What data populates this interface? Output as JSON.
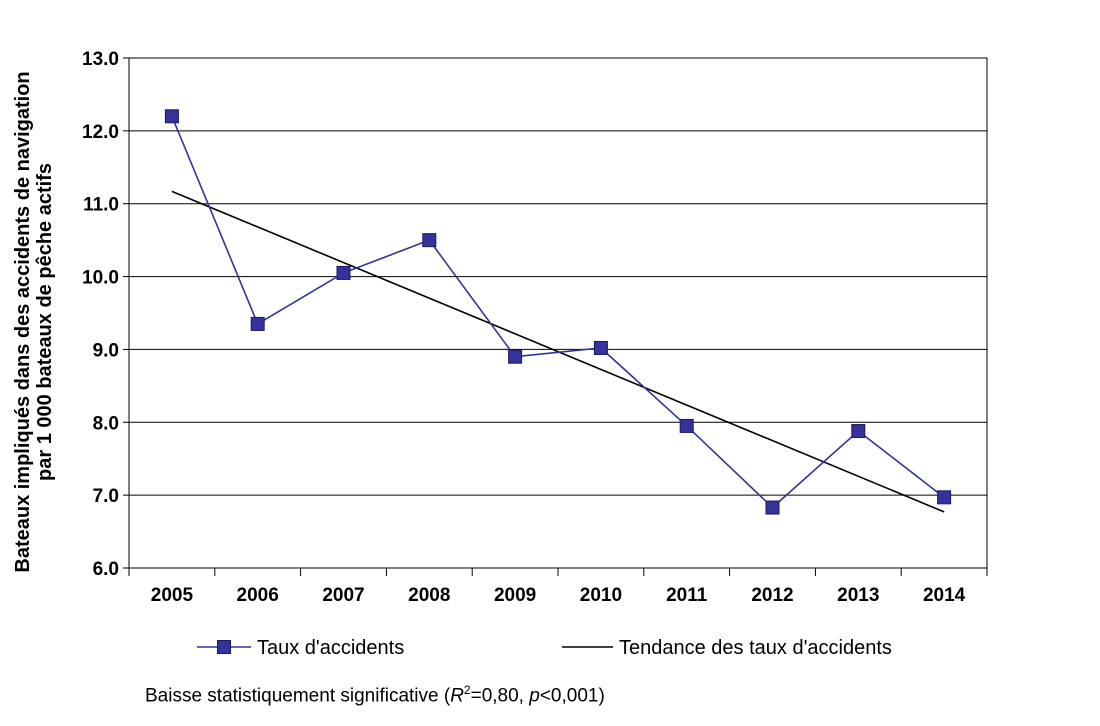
{
  "chart_data": {
    "type": "line",
    "categories": [
      "2005",
      "2006",
      "2007",
      "2008",
      "2009",
      "2010",
      "2011",
      "2012",
      "2013",
      "2014"
    ],
    "series": [
      {
        "name": "Taux d'accidents",
        "values": [
          12.2,
          9.35,
          10.05,
          10.5,
          8.9,
          9.02,
          7.95,
          6.83,
          7.88,
          6.97
        ],
        "color": "#333399",
        "marker": "square"
      }
    ],
    "trendline": {
      "name": "Tendance des taux d'accidents",
      "start": 11.17,
      "end": 6.77,
      "color": "#000000"
    },
    "ylabel_lines": [
      "Bateaux impliqués dans des accidents de navigation",
      "par 1 000 bateaux de pêche actifs"
    ],
    "xlabel": "",
    "ylim": [
      6.0,
      13.0
    ],
    "yticks": [
      "6.0",
      "7.0",
      "8.0",
      "9.0",
      "10.0",
      "11.0",
      "12.0",
      "13.0"
    ],
    "grid": true,
    "legend_position": "bottom"
  },
  "footnote": {
    "prefix": "Baisse statistiquement significative (",
    "r_symbol": "R",
    "sup": "2",
    "middle": "=0,80, ",
    "p_symbol": "p",
    "suffix": "<0,001)"
  }
}
